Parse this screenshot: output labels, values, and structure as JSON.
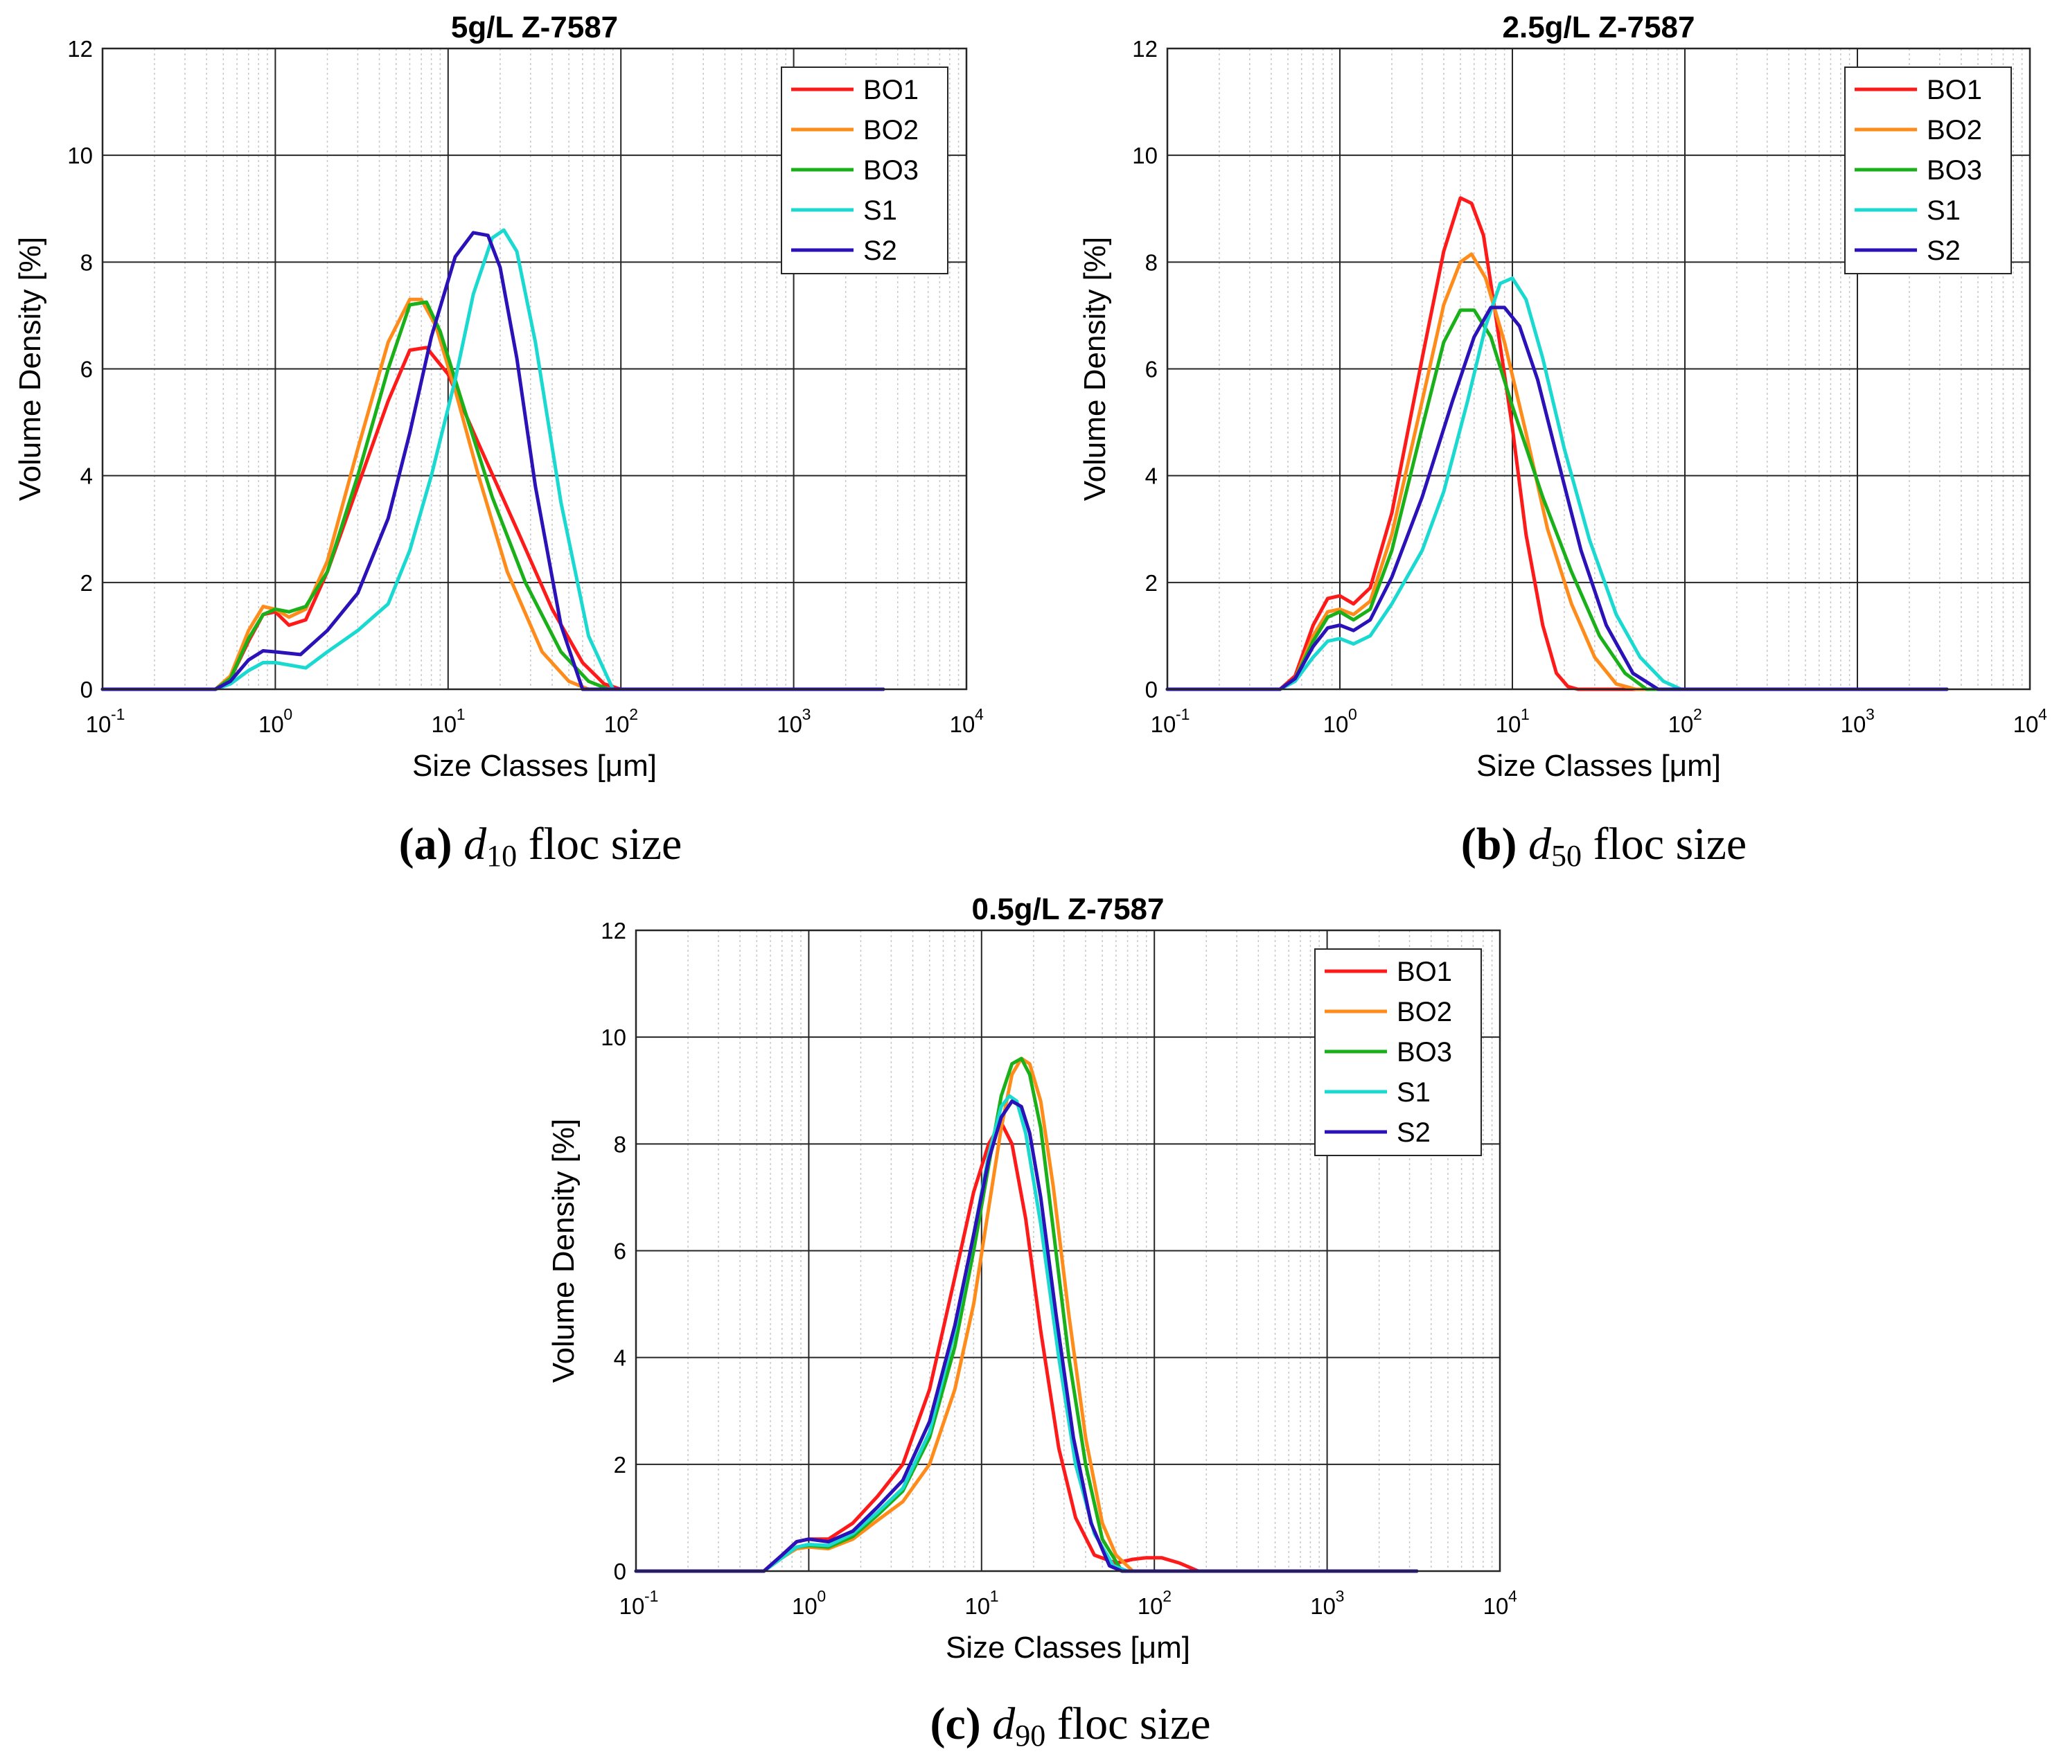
{
  "figure": {
    "captions": [
      {
        "letter": "(a)",
        "var": "d",
        "sub": "10",
        "text": "floc size"
      },
      {
        "letter": "(b)",
        "var": "d",
        "sub": "50",
        "text": "floc size"
      },
      {
        "letter": "(c)",
        "var": "d",
        "sub": "90",
        "text": "floc size"
      }
    ]
  },
  "colors": {
    "BO1": "#ff1a1a",
    "BO2": "#ff8c1a",
    "BO3": "#1ab01a",
    "S1": "#1ad9d0",
    "S2": "#2a12b8"
  },
  "chart_data": [
    {
      "type": "line",
      "title": "5g/L Z-7587",
      "xlabel": "Size Classes [μm]",
      "ylabel": "Volume Density [%]",
      "xscale": "log",
      "xlim": [
        0.1,
        10000
      ],
      "ylim": [
        0,
        12
      ],
      "yticks": [
        "0",
        "2",
        "4",
        "6",
        "8",
        "10",
        "12"
      ],
      "xticks": [
        {
          "base": "10",
          "exp": "-1"
        },
        {
          "base": "10",
          "exp": "0"
        },
        {
          "base": "10",
          "exp": "1"
        },
        {
          "base": "10",
          "exp": "2"
        },
        {
          "base": "10",
          "exp": "3"
        },
        {
          "base": "10",
          "exp": "4"
        }
      ],
      "grid": true,
      "legend": "top-right",
      "series": [
        {
          "name": "BO1",
          "x": [
            0.1,
            0.45,
            0.55,
            0.7,
            0.85,
            1.0,
            1.2,
            1.5,
            2.0,
            3.0,
            4.5,
            6.0,
            7.5,
            10,
            15,
            25,
            40,
            60,
            80,
            100,
            3300
          ],
          "y": [
            0,
            0,
            0.2,
            0.9,
            1.4,
            1.45,
            1.2,
            1.3,
            2.2,
            3.8,
            5.4,
            6.35,
            6.4,
            5.9,
            4.6,
            3.0,
            1.5,
            0.5,
            0.1,
            0,
            0
          ]
        },
        {
          "name": "BO2",
          "x": [
            0.1,
            0.45,
            0.55,
            0.7,
            0.85,
            1.0,
            1.2,
            1.5,
            2.0,
            3.0,
            4.5,
            6.0,
            7.0,
            8.5,
            11,
            15,
            22,
            35,
            50,
            65,
            3300
          ],
          "y": [
            0,
            0,
            0.25,
            1.1,
            1.55,
            1.5,
            1.35,
            1.5,
            2.4,
            4.5,
            6.5,
            7.3,
            7.3,
            6.8,
            5.6,
            4.0,
            2.2,
            0.7,
            0.15,
            0,
            0
          ]
        },
        {
          "name": "BO3",
          "x": [
            0.1,
            0.45,
            0.55,
            0.7,
            0.85,
            1.0,
            1.2,
            1.5,
            2.0,
            3.0,
            4.5,
            6.0,
            7.5,
            9.0,
            12,
            18,
            28,
            45,
            65,
            85,
            3300
          ],
          "y": [
            0,
            0,
            0.2,
            0.95,
            1.4,
            1.5,
            1.45,
            1.55,
            2.2,
            4.0,
            6.0,
            7.2,
            7.25,
            6.7,
            5.4,
            3.6,
            2.0,
            0.7,
            0.15,
            0,
            0
          ]
        },
        {
          "name": "S1",
          "x": [
            0.1,
            0.45,
            0.55,
            0.7,
            0.85,
            1.0,
            1.5,
            2.0,
            3.0,
            4.5,
            6.0,
            8.0,
            11,
            14,
            18,
            21,
            25,
            32,
            45,
            65,
            90,
            3300
          ],
          "y": [
            0,
            0,
            0.1,
            0.35,
            0.5,
            0.5,
            0.4,
            0.7,
            1.1,
            1.6,
            2.6,
            4.0,
            5.8,
            7.4,
            8.45,
            8.6,
            8.2,
            6.5,
            3.5,
            1.0,
            0,
            0
          ]
        },
        {
          "name": "S2",
          "x": [
            0.1,
            0.45,
            0.55,
            0.7,
            0.85,
            1.0,
            1.4,
            2.0,
            3.0,
            4.5,
            6.0,
            8.0,
            11,
            14,
            17,
            20,
            25,
            32,
            45,
            60,
            3300
          ],
          "y": [
            0,
            0,
            0.15,
            0.55,
            0.72,
            0.7,
            0.65,
            1.1,
            1.8,
            3.2,
            4.8,
            6.6,
            8.1,
            8.55,
            8.5,
            7.9,
            6.2,
            3.8,
            1.2,
            0,
            0
          ]
        }
      ]
    },
    {
      "type": "line",
      "title": "2.5g/L Z-7587",
      "xlabel": "Size Classes [μm]",
      "ylabel": "Volume Density [%]",
      "xscale": "log",
      "xlim": [
        0.1,
        10000
      ],
      "ylim": [
        0,
        12
      ],
      "yticks": [
        "0",
        "2",
        "4",
        "6",
        "8",
        "10",
        "12"
      ],
      "xticks": [
        {
          "base": "10",
          "exp": "-1"
        },
        {
          "base": "10",
          "exp": "0"
        },
        {
          "base": "10",
          "exp": "1"
        },
        {
          "base": "10",
          "exp": "2"
        },
        {
          "base": "10",
          "exp": "3"
        },
        {
          "base": "10",
          "exp": "4"
        }
      ],
      "grid": true,
      "legend": "top-right",
      "series": [
        {
          "name": "BO1",
          "x": [
            0.1,
            0.45,
            0.55,
            0.7,
            0.85,
            1.0,
            1.2,
            1.5,
            2.0,
            3.0,
            4.0,
            5.0,
            5.8,
            6.8,
            8.0,
            10,
            12,
            15,
            18,
            21,
            24,
            3300
          ],
          "y": [
            0,
            0,
            0.25,
            1.2,
            1.7,
            1.75,
            1.6,
            1.9,
            3.3,
            6.2,
            8.2,
            9.2,
            9.1,
            8.5,
            7.0,
            4.9,
            2.9,
            1.2,
            0.3,
            0.05,
            0,
            0
          ]
        },
        {
          "name": "BO2",
          "x": [
            0.1,
            0.45,
            0.55,
            0.7,
            0.85,
            1.0,
            1.2,
            1.5,
            2.0,
            3.0,
            4.0,
            5.0,
            5.8,
            7.0,
            9.0,
            12,
            16,
            22,
            30,
            40,
            52,
            3300
          ],
          "y": [
            0,
            0,
            0.2,
            1.0,
            1.45,
            1.5,
            1.4,
            1.65,
            2.9,
            5.4,
            7.2,
            8.0,
            8.15,
            7.7,
            6.5,
            4.8,
            3.0,
            1.6,
            0.6,
            0.1,
            0,
            0
          ]
        },
        {
          "name": "BO3",
          "x": [
            0.1,
            0.45,
            0.55,
            0.7,
            0.85,
            1.0,
            1.2,
            1.5,
            2.0,
            3.0,
            4.0,
            5.0,
            6.0,
            7.5,
            10,
            15,
            22,
            32,
            45,
            60,
            3300
          ],
          "y": [
            0,
            0,
            0.2,
            0.9,
            1.35,
            1.45,
            1.3,
            1.5,
            2.6,
            4.9,
            6.5,
            7.1,
            7.1,
            6.6,
            5.3,
            3.6,
            2.2,
            1.0,
            0.3,
            0,
            0
          ]
        },
        {
          "name": "S1",
          "x": [
            0.1,
            0.45,
            0.55,
            0.7,
            0.85,
            1.0,
            1.2,
            1.5,
            2.0,
            3.0,
            4.0,
            5.5,
            7.0,
            8.5,
            10,
            12,
            15,
            20,
            28,
            40,
            55,
            75,
            95,
            3300
          ],
          "y": [
            0,
            0,
            0.15,
            0.6,
            0.9,
            0.95,
            0.85,
            1.0,
            1.6,
            2.6,
            3.7,
            5.4,
            6.8,
            7.6,
            7.7,
            7.3,
            6.2,
            4.5,
            2.8,
            1.4,
            0.6,
            0.15,
            0,
            0
          ]
        },
        {
          "name": "S2",
          "x": [
            0.1,
            0.45,
            0.55,
            0.7,
            0.85,
            1.0,
            1.2,
            1.5,
            2.0,
            3.0,
            4.5,
            6.0,
            7.5,
            9.0,
            11,
            14,
            18,
            25,
            35,
            50,
            70,
            3300
          ],
          "y": [
            0,
            0,
            0.2,
            0.8,
            1.15,
            1.2,
            1.1,
            1.3,
            2.1,
            3.6,
            5.4,
            6.6,
            7.15,
            7.15,
            6.8,
            5.8,
            4.4,
            2.6,
            1.2,
            0.3,
            0,
            0
          ]
        }
      ]
    },
    {
      "type": "line",
      "title": "0.5g/L Z-7587",
      "xlabel": "Size Classes [μm]",
      "ylabel": "Volume Density [%]",
      "xscale": "log",
      "xlim": [
        0.1,
        10000
      ],
      "ylim": [
        0,
        12
      ],
      "yticks": [
        "0",
        "2",
        "4",
        "6",
        "8",
        "10",
        "12"
      ],
      "xticks": [
        {
          "base": "10",
          "exp": "-1"
        },
        {
          "base": "10",
          "exp": "0"
        },
        {
          "base": "10",
          "exp": "1"
        },
        {
          "base": "10",
          "exp": "2"
        },
        {
          "base": "10",
          "exp": "3"
        },
        {
          "base": "10",
          "exp": "4"
        }
      ],
      "grid": true,
      "legend": "top-right",
      "series": [
        {
          "name": "BO1",
          "x": [
            0.1,
            0.55,
            0.7,
            0.85,
            1.0,
            1.3,
            1.8,
            2.5,
            3.5,
            5.0,
            7.0,
            9.0,
            11,
            13,
            15,
            18,
            22,
            28,
            35,
            45,
            60,
            75,
            90,
            110,
            140,
            180,
            3300
          ],
          "y": [
            0,
            0,
            0.3,
            0.55,
            0.6,
            0.6,
            0.9,
            1.4,
            2.0,
            3.4,
            5.5,
            7.1,
            8.0,
            8.4,
            8.0,
            6.6,
            4.5,
            2.3,
            1.0,
            0.3,
            0.15,
            0.22,
            0.25,
            0.25,
            0.15,
            0,
            0
          ]
        },
        {
          "name": "BO2",
          "x": [
            0.1,
            0.55,
            0.7,
            0.85,
            1.0,
            1.3,
            1.8,
            2.5,
            3.5,
            5.0,
            7.0,
            9.0,
            11,
            13,
            15,
            17,
            19,
            22,
            26,
            32,
            40,
            50,
            60,
            75,
            3300
          ],
          "y": [
            0,
            0,
            0.25,
            0.42,
            0.45,
            0.42,
            0.6,
            0.95,
            1.3,
            2.0,
            3.4,
            5.0,
            6.8,
            8.3,
            9.3,
            9.6,
            9.5,
            8.8,
            7.2,
            4.8,
            2.5,
            0.9,
            0.3,
            0,
            0
          ]
        },
        {
          "name": "BO3",
          "x": [
            0.1,
            0.55,
            0.7,
            0.85,
            1.0,
            1.3,
            1.8,
            2.5,
            3.5,
            5.0,
            7.0,
            9.0,
            11,
            13,
            15,
            17,
            19,
            22,
            26,
            32,
            40,
            50,
            65,
            3300
          ],
          "y": [
            0,
            0,
            0.25,
            0.45,
            0.48,
            0.45,
            0.65,
            1.05,
            1.5,
            2.5,
            4.2,
            6.0,
            7.6,
            8.9,
            9.5,
            9.6,
            9.3,
            8.3,
            6.4,
            4.0,
            2.0,
            0.6,
            0,
            0
          ]
        },
        {
          "name": "S1",
          "x": [
            0.1,
            0.55,
            0.7,
            0.85,
            1.0,
            1.3,
            1.8,
            2.5,
            3.5,
            5.0,
            7.0,
            9.0,
            11,
            13,
            14.5,
            16,
            18,
            22,
            28,
            35,
            45,
            58,
            70,
            3300
          ],
          "y": [
            0,
            0,
            0.25,
            0.45,
            0.5,
            0.48,
            0.7,
            1.1,
            1.55,
            2.6,
            4.5,
            6.3,
            7.8,
            8.7,
            8.9,
            8.8,
            8.2,
            6.5,
            4.0,
            2.0,
            0.7,
            0.1,
            0,
            0
          ]
        },
        {
          "name": "S2",
          "x": [
            0.1,
            0.55,
            0.7,
            0.85,
            1.0,
            1.3,
            1.8,
            2.5,
            3.5,
            5.0,
            7.0,
            9.0,
            11,
            13,
            15,
            17,
            19,
            22,
            27,
            34,
            43,
            55,
            65,
            3300
          ],
          "y": [
            0,
            0,
            0.3,
            0.55,
            0.6,
            0.55,
            0.75,
            1.2,
            1.7,
            2.8,
            4.6,
            6.3,
            7.7,
            8.5,
            8.8,
            8.7,
            8.2,
            7.0,
            4.8,
            2.5,
            0.9,
            0.1,
            0,
            0
          ]
        }
      ]
    }
  ]
}
